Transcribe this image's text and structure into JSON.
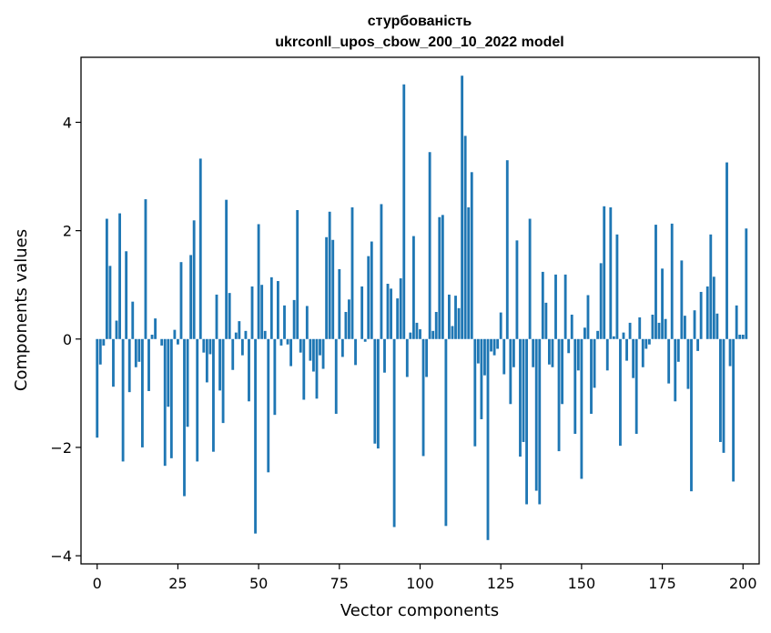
{
  "chart_data": {
    "type": "bar",
    "title_line1": "стурбованість",
    "title_line2": "ukrconll_upos_cbow_200_10_2022 model",
    "xlabel": "Vector components",
    "ylabel": "Components values",
    "xlim": [
      -5,
      205
    ],
    "ylim": [
      -4.15,
      5.2
    ],
    "xticks": [
      0,
      25,
      50,
      75,
      100,
      125,
      150,
      175,
      200
    ],
    "xtick_labels": [
      "0",
      "25",
      "50",
      "75",
      "100",
      "125",
      "150",
      "175",
      "200"
    ],
    "yticks": [
      -4,
      -2,
      0,
      2,
      4
    ],
    "ytick_labels": [
      "−4",
      "−2",
      "0",
      "2",
      "4"
    ],
    "grid": false,
    "bar_color": "#1f77b4",
    "values": [
      -1.82,
      -0.47,
      -0.12,
      2.22,
      1.35,
      -0.88,
      0.34,
      2.32,
      -2.26,
      1.62,
      -0.98,
      0.69,
      -0.52,
      -0.42,
      -2.0,
      2.58,
      -0.96,
      0.08,
      0.38,
      0.0,
      -0.12,
      -2.34,
      -1.25,
      -2.2,
      0.17,
      -0.1,
      1.42,
      -2.9,
      -1.62,
      1.55,
      2.19,
      -2.26,
      3.33,
      -0.25,
      -0.8,
      -0.28,
      -2.08,
      0.82,
      -0.95,
      -1.55,
      2.57,
      0.85,
      -0.57,
      0.12,
      0.33,
      -0.3,
      0.15,
      -1.15,
      0.97,
      -3.59,
      2.12,
      1.0,
      0.15,
      -2.46,
      1.14,
      -1.4,
      1.07,
      -0.12,
      0.62,
      -0.1,
      -0.5,
      0.72,
      2.38,
      -0.25,
      -1.12,
      0.61,
      -0.4,
      -0.6,
      -1.1,
      -0.3,
      -0.55,
      1.88,
      2.35,
      1.83,
      -1.38,
      1.29,
      -0.33,
      0.5,
      0.73,
      2.43,
      -0.48,
      0.0,
      0.97,
      -0.05,
      1.53,
      1.8,
      -1.93,
      -2.02,
      2.49,
      -0.62,
      1.02,
      0.93,
      -3.47,
      0.75,
      1.12,
      4.7,
      -0.7,
      0.12,
      1.9,
      0.3,
      0.18,
      -2.16,
      -0.7,
      3.45,
      0.15,
      0.5,
      2.25,
      2.29,
      -3.45,
      0.82,
      0.24,
      0.8,
      0.57,
      4.86,
      3.75,
      2.43,
      3.08,
      -1.98,
      -0.45,
      -1.48,
      -0.67,
      -3.71,
      -0.23,
      -0.3,
      -0.18,
      0.49,
      -0.65,
      3.3,
      -1.2,
      -0.52,
      1.82,
      -2.17,
      -1.9,
      -3.05,
      2.22,
      -0.52,
      -2.8,
      -3.05,
      1.24,
      0.67,
      -0.47,
      -0.52,
      1.19,
      -2.07,
      -1.2,
      1.19,
      -0.26,
      0.45,
      -1.75,
      -0.58,
      -2.58,
      0.21,
      0.81,
      -1.38,
      -0.9,
      0.15,
      1.4,
      2.45,
      -0.58,
      2.43,
      0.05,
      1.93,
      -1.97,
      0.12,
      -0.4,
      0.3,
      -0.72,
      -1.75,
      0.4,
      -0.52,
      -0.18,
      -0.1,
      0.45,
      2.11,
      0.3,
      1.3,
      0.37,
      -0.82,
      2.13,
      -1.15,
      -0.42,
      1.45,
      0.43,
      -0.92,
      -2.81,
      0.53,
      -0.22,
      0.87,
      0.0,
      0.97,
      1.93,
      1.15,
      0.47,
      -1.9,
      -2.1,
      3.26,
      -0.5,
      -2.63,
      0.62,
      0.08,
      0.08,
      2.04
    ]
  }
}
